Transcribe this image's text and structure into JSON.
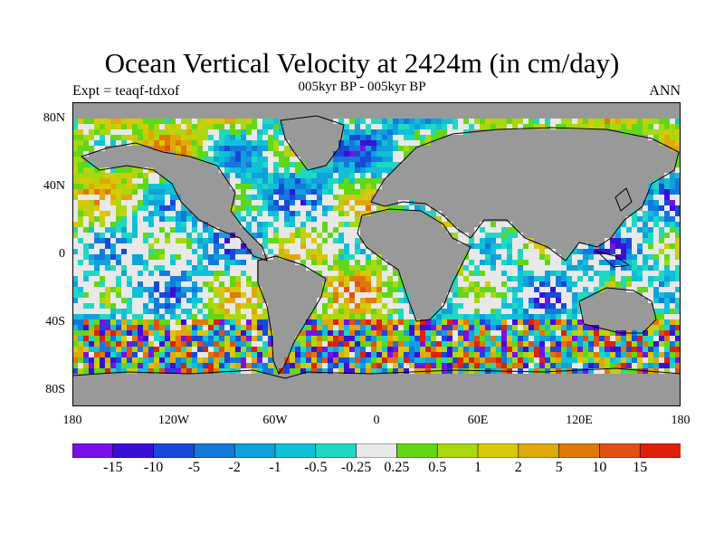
{
  "title": "Ocean Vertical Velocity at 2424m (in cm/day)",
  "subtitle": "005kyr BP - 005kyr BP",
  "left_label": "Expt = teaqf-tdxof",
  "right_label": "ANN",
  "lat_labels": [
    "80N",
    "40N",
    "0",
    "40S",
    "80S"
  ],
  "lon_labels": [
    "180",
    "120W",
    "60W",
    "0",
    "60E",
    "120E",
    "180"
  ],
  "colorbar": {
    "labels": [
      "-15",
      "-10",
      "-5",
      "-2",
      "-1",
      "-0.5",
      "-0.25",
      "0.25",
      "0.5",
      "1",
      "2",
      "5",
      "10",
      "15"
    ],
    "colors": [
      "#7a10e8",
      "#3a10d8",
      "#1848d8",
      "#1478dc",
      "#10a0dc",
      "#10c0d8",
      "#20d8c0",
      "#e8e8e8",
      "#60d818",
      "#a8d810",
      "#d8c808",
      "#e0a808",
      "#e07808",
      "#e05010",
      "#e02008"
    ]
  },
  "colors": {
    "land": "#999999",
    "coastline": "#000000",
    "background": "#ffffff"
  }
}
